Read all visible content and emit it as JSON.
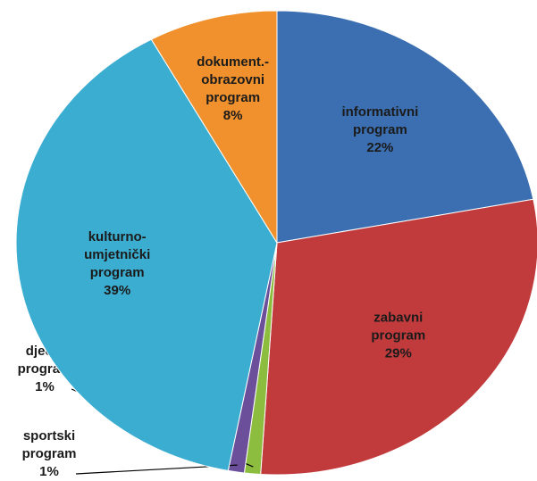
{
  "chart_data": {
    "type": "pie",
    "categories": [
      [
        "informativni",
        "program"
      ],
      [
        "zabavni",
        "program"
      ],
      [
        "dječiji",
        "program"
      ],
      [
        "sportski",
        "program"
      ],
      [
        "kulturno-",
        "umjetnički",
        "program"
      ],
      [
        "dokument.-",
        "obrazovni",
        "program"
      ]
    ],
    "values": [
      22,
      29,
      1,
      1,
      39,
      8
    ],
    "value_labels": [
      "22%",
      "29%",
      "1%",
      "1%",
      "39%",
      "8%"
    ],
    "colors": [
      "#3b6fb1",
      "#c23b3c",
      "#8dbd3e",
      "#6b4f9b",
      "#3badd1",
      "#f0912d"
    ]
  }
}
